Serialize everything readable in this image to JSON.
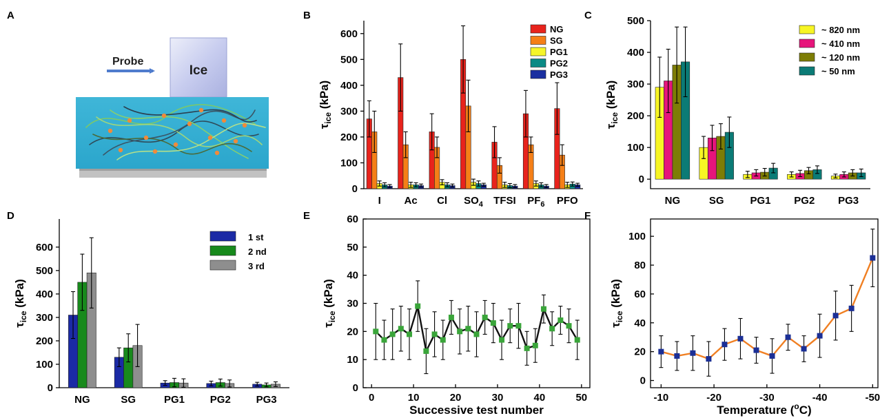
{
  "panels": {
    "A": {
      "letter": "A",
      "probe_label": "Probe",
      "ice_label": "Ice"
    },
    "B": {
      "letter": "B"
    },
    "C": {
      "letter": "C"
    },
    "D": {
      "letter": "D"
    },
    "E": {
      "letter": "E"
    },
    "F": {
      "letter": "F"
    }
  },
  "chart_data": [
    {
      "panel": "B",
      "type": "bar",
      "ylabel": "τice (kPa)",
      "ylabel_main": "τ",
      "ylabel_sub": "ice",
      "ylabel_unit": "(kPa)",
      "ylim": [
        0,
        650
      ],
      "yticks": [
        0,
        100,
        200,
        300,
        400,
        500,
        600
      ],
      "categories": [
        "I",
        "Ac",
        "Cl",
        "SO4",
        "TFSI",
        "PF6",
        "PFO"
      ],
      "category_labels": [
        {
          "main": "I",
          "sub": ""
        },
        {
          "main": "Ac",
          "sub": ""
        },
        {
          "main": "Cl",
          "sub": ""
        },
        {
          "main": "SO",
          "sub": "4"
        },
        {
          "main": "TFSI",
          "sub": ""
        },
        {
          "main": "PF",
          "sub": "6"
        },
        {
          "main": "PFO",
          "sub": ""
        }
      ],
      "legend_position": "top-right",
      "series": [
        {
          "name": "NG",
          "color": "#e8231c",
          "values": [
            270,
            430,
            220,
            500,
            180,
            290,
            310
          ],
          "errors": [
            70,
            130,
            70,
            130,
            60,
            90,
            100
          ]
        },
        {
          "name": "SG",
          "color": "#f57f17",
          "values": [
            220,
            170,
            160,
            320,
            90,
            170,
            130
          ],
          "errors": [
            80,
            50,
            40,
            100,
            30,
            30,
            40
          ]
        },
        {
          "name": "PG1",
          "color": "#f6f52a",
          "values": [
            20,
            15,
            25,
            25,
            15,
            20,
            15
          ],
          "errors": [
            10,
            10,
            10,
            12,
            10,
            10,
            10
          ]
        },
        {
          "name": "PG2",
          "color": "#0a8a85",
          "values": [
            15,
            15,
            15,
            20,
            12,
            15,
            18
          ],
          "errors": [
            8,
            8,
            8,
            10,
            8,
            8,
            8
          ]
        },
        {
          "name": "PG3",
          "color": "#1a2fa0",
          "values": [
            10,
            12,
            12,
            15,
            10,
            10,
            15
          ],
          "errors": [
            6,
            6,
            6,
            6,
            6,
            6,
            6
          ]
        }
      ]
    },
    {
      "panel": "C",
      "type": "bar",
      "ylabel": "τice (kPa)",
      "ylabel_main": "τ",
      "ylabel_sub": "ice",
      "ylabel_unit": "(kPa)",
      "ylim": [
        -30,
        500
      ],
      "yticks": [
        0,
        100,
        200,
        300,
        400,
        500
      ],
      "categories": [
        "NG",
        "SG",
        "PG1",
        "PG2",
        "PG3"
      ],
      "legend_position": "top-right",
      "series": [
        {
          "name": "~ 820 nm",
          "color": "#f7f524",
          "values": [
            290,
            100,
            15,
            15,
            10
          ],
          "errors": [
            95,
            35,
            10,
            8,
            6
          ]
        },
        {
          "name": "~ 410 nm",
          "color": "#e6157b",
          "values": [
            310,
            130,
            20,
            18,
            15
          ],
          "errors": [
            100,
            40,
            10,
            10,
            8
          ]
        },
        {
          "name": "~ 120 nm",
          "color": "#7d7d05",
          "values": [
            360,
            135,
            22,
            27,
            20
          ],
          "errors": [
            120,
            40,
            12,
            10,
            10
          ]
        },
        {
          "name": "~ 50 nm",
          "color": "#0b7b76",
          "values": [
            370,
            148,
            35,
            30,
            20
          ],
          "errors": [
            110,
            48,
            15,
            12,
            12
          ]
        }
      ]
    },
    {
      "panel": "D",
      "type": "bar",
      "ylabel": "τice (kPa)",
      "ylabel_main": "τ",
      "ylabel_sub": "ice",
      "ylabel_unit": "(kPa)",
      "ylim": [
        0,
        720
      ],
      "yticks": [
        0,
        100,
        200,
        300,
        400,
        500,
        600
      ],
      "categories": [
        "NG",
        "SG",
        "PG1",
        "PG2",
        "PG3"
      ],
      "legend_position": "top-right",
      "series": [
        {
          "name": "1 st",
          "color": "#1b2aa5",
          "values": [
            310,
            130,
            20,
            18,
            15
          ],
          "errors": [
            100,
            40,
            10,
            10,
            8
          ]
        },
        {
          "name": "2 nd",
          "color": "#188a1c",
          "values": [
            450,
            170,
            22,
            22,
            12
          ],
          "errors": [
            120,
            60,
            18,
            15,
            8
          ]
        },
        {
          "name": "3 rd",
          "color": "#8e8e8e",
          "values": [
            490,
            180,
            20,
            18,
            15
          ],
          "errors": [
            150,
            90,
            18,
            15,
            10
          ]
        }
      ]
    },
    {
      "panel": "E",
      "type": "line",
      "xlabel": "Successive test number",
      "ylabel": "τice (kPa)",
      "ylabel_main": "τ",
      "ylabel_sub": "ice",
      "ylabel_unit": "(kPa)",
      "xlim": [
        -2,
        52
      ],
      "ylim": [
        0,
        60
      ],
      "xticks": [
        0,
        10,
        20,
        30,
        40,
        50
      ],
      "yticks": [
        0,
        10,
        20,
        30,
        40,
        50,
        60
      ],
      "line_color": "#111111",
      "marker_color": "#3aa53a",
      "x": [
        1,
        3,
        5,
        7,
        9,
        11,
        13,
        15,
        17,
        19,
        21,
        23,
        25,
        27,
        29,
        31,
        33,
        35,
        37,
        39,
        41,
        43,
        45,
        47,
        49
      ],
      "y": [
        20,
        17,
        19,
        21,
        19,
        29,
        13,
        19,
        17,
        25,
        20,
        21,
        19,
        25,
        23,
        17,
        22,
        22,
        14,
        15,
        28,
        21,
        24,
        22,
        17
      ],
      "errors": [
        10,
        7,
        9,
        8,
        9,
        9,
        8,
        8,
        7,
        6,
        8,
        8,
        8,
        6,
        7,
        7,
        6,
        8,
        6,
        6,
        5,
        6,
        5,
        6,
        7
      ]
    },
    {
      "panel": "F",
      "type": "line",
      "xlabel": "Temperature (°C)",
      "xlabel_main": "Temperature (",
      "xlabel_sup": "o",
      "xlabel_tail": "C)",
      "ylabel": "τice (kPa)",
      "ylabel_main": "τ",
      "ylabel_sub": "ice",
      "ylabel_unit": "(kPa)",
      "xlim": [
        -8,
        -51
      ],
      "ylim": [
        -5,
        112
      ],
      "xticks": [
        -10,
        -20,
        -30,
        -40,
        -50
      ],
      "yticks": [
        0,
        20,
        40,
        60,
        80,
        100
      ],
      "line_color": "#f07f22",
      "marker_color": "#1b2f96",
      "x": [
        -10,
        -13,
        -16,
        -19,
        -22,
        -25,
        -28,
        -31,
        -34,
        -37,
        -40,
        -43,
        -46,
        -50
      ],
      "y": [
        20,
        17,
        19,
        15,
        25,
        29,
        21,
        17,
        30,
        22,
        31,
        45,
        50,
        85
      ],
      "errors": [
        11,
        10,
        12,
        12,
        11,
        14,
        9,
        12,
        9,
        9,
        15,
        17,
        16,
        20
      ]
    }
  ]
}
